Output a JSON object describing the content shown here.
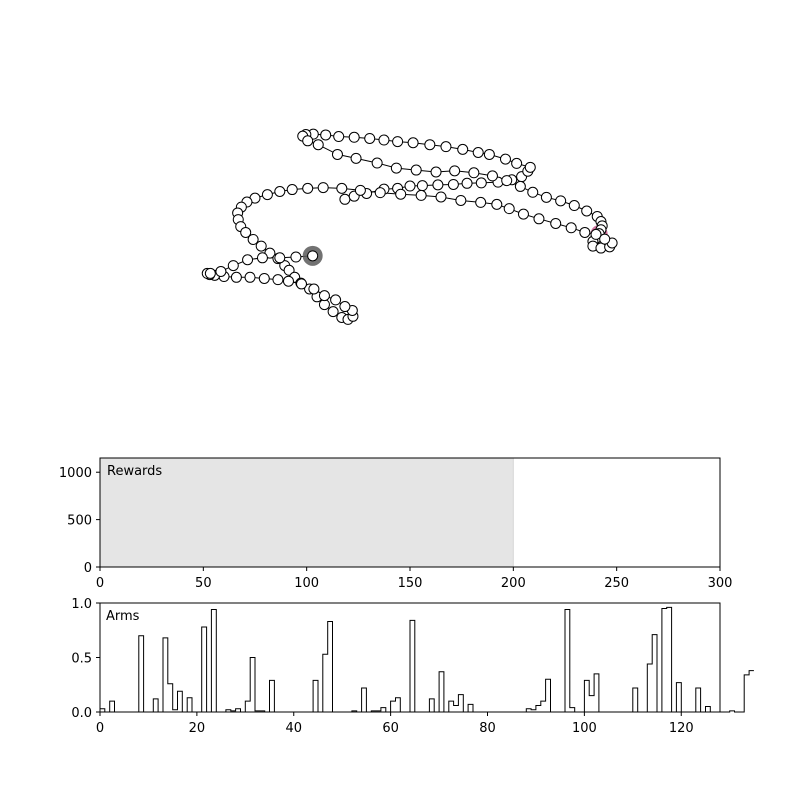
{
  "colors": {
    "node_fill": "#ffffff",
    "node_stroke": "#000000",
    "path_line": "#000000",
    "start_marker": "#c2457f",
    "end_marker": "#595959",
    "shade": "#e5e5e5",
    "step_line": "#000000"
  },
  "chart_data": [
    {
      "type": "line",
      "description_role": "trajectory",
      "marker": "circle",
      "highlight": {
        "start_index": 55,
        "end_index": 128
      },
      "series": [
        {
          "x": [
            0.395,
            0.41,
            0.43,
            0.458,
            0.48,
            0.5,
            0.52,
            0.545,
            0.57,
            0.592,
            0.615,
            0.642,
            0.664,
            0.68,
            0.69,
            0.694,
            0.672,
            0.654,
            0.628,
            0.61,
            0.585,
            0.558,
            0.532,
            0.505,
            0.48,
            0.458,
            0.435,
            0.41,
            0.385,
            0.364,
            0.344,
            0.332,
            0.327,
            0.335,
            0.352,
            0.383,
            0.413,
            0.447,
            0.478,
            0.51,
            0.542,
            0.572,
            0.603,
            0.633,
            0.656,
            0.678,
            0.698,
            0.72,
            0.743,
            0.765,
            0.785,
            0.802,
            0.808,
            0.81,
            0.808,
            0.805,
            0.8,
            0.795,
            0.795,
            0.808,
            0.822,
            0.826,
            0.814,
            0.8,
            0.782,
            0.76,
            0.735,
            0.708,
            0.683,
            0.66,
            0.64,
            0.614,
            0.582,
            0.55,
            0.518,
            0.485,
            0.452,
            0.42,
            0.39,
            0.36,
            0.335,
            0.31,
            0.29,
            0.27,
            0.25,
            0.237,
            0.228,
            0.222,
            0.223,
            0.227,
            0.235,
            0.247,
            0.26,
            0.274,
            0.287,
            0.298,
            0.305,
            0.314,
            0.324,
            0.338,
            0.35,
            0.362,
            0.376,
            0.39,
            0.4,
            0.408,
            0.407,
            0.395,
            0.38,
            0.362,
            0.345,
            0.325,
            0.304,
            0.287,
            0.265,
            0.242,
            0.22,
            0.2,
            0.185,
            0.177,
            0.173,
            0.178,
            0.195,
            0.215,
            0.238,
            0.262,
            0.29,
            0.316,
            0.343
          ],
          "y": [
            0.63,
            0.638,
            0.645,
            0.656,
            0.658,
            0.664,
            0.665,
            0.667,
            0.668,
            0.671,
            0.672,
            0.674,
            0.68,
            0.688,
            0.702,
            0.712,
            0.722,
            0.733,
            0.745,
            0.75,
            0.758,
            0.765,
            0.77,
            0.775,
            0.778,
            0.782,
            0.786,
            0.789,
            0.791,
            0.795,
            0.797,
            0.796,
            0.792,
            0.78,
            0.77,
            0.745,
            0.735,
            0.723,
            0.71,
            0.705,
            0.7,
            0.703,
            0.698,
            0.69,
            0.678,
            0.663,
            0.648,
            0.635,
            0.626,
            0.614,
            0.6,
            0.586,
            0.573,
            0.562,
            0.552,
            0.542,
            0.53,
            0.522,
            0.51,
            0.505,
            0.508,
            0.518,
            0.528,
            0.54,
            0.545,
            0.557,
            0.568,
            0.58,
            0.592,
            0.606,
            0.617,
            0.622,
            0.627,
            0.636,
            0.64,
            0.643,
            0.647,
            0.653,
            0.658,
            0.66,
            0.658,
            0.655,
            0.65,
            0.642,
            0.633,
            0.623,
            0.61,
            0.595,
            0.578,
            0.56,
            0.545,
            0.527,
            0.51,
            0.492,
            0.478,
            0.46,
            0.448,
            0.43,
            0.415,
            0.4,
            0.38,
            0.36,
            0.342,
            0.327,
            0.322,
            0.33,
            0.345,
            0.355,
            0.372,
            0.383,
            0.4,
            0.413,
            0.42,
            0.424,
            0.427,
            0.43,
            0.43,
            0.432,
            0.435,
            0.437,
            0.44,
            0.44,
            0.445,
            0.46,
            0.475,
            0.48,
            0.48,
            0.482,
            0.485
          ]
        }
      ],
      "xlim": [
        0,
        1
      ],
      "ylim": [
        0,
        1
      ]
    },
    {
      "type": "area",
      "label": "Rewards",
      "xlim": [
        0,
        300
      ],
      "ylim": [
        0,
        1150
      ],
      "xticks": [
        0,
        50,
        100,
        150,
        200,
        250,
        300
      ],
      "yticks": [
        0,
        500,
        1000
      ],
      "shaded_region": {
        "x_start": 0,
        "x_end": 200,
        "y_top": 1150
      }
    },
    {
      "type": "bar",
      "label": "Arms",
      "style": "step",
      "xlim": [
        0,
        128
      ],
      "ylim": [
        0,
        1.0
      ],
      "xticks": [
        0,
        20,
        40,
        60,
        80,
        100,
        120
      ],
      "yticks": [
        0.0,
        0.5,
        1.0
      ],
      "ytick_labels": [
        "0.0",
        "0.5",
        "1.0"
      ],
      "values": [
        0.03,
        0.0,
        0.1,
        0.0,
        0.0,
        0.0,
        0.0,
        0.0,
        0.7,
        0.0,
        0.0,
        0.12,
        0.0,
        0.68,
        0.26,
        0.02,
        0.19,
        0.0,
        0.13,
        0.0,
        0.0,
        0.78,
        0.0,
        0.94,
        0.0,
        0.0,
        0.02,
        0.01,
        0.03,
        0.0,
        0.1,
        0.5,
        0.01,
        0.01,
        0.0,
        0.29,
        0.0,
        0.0,
        0.0,
        0.0,
        0.0,
        0.0,
        0.0,
        0.0,
        0.29,
        0.0,
        0.53,
        0.83,
        0.0,
        0.0,
        0.0,
        0.0,
        0.01,
        0.0,
        0.22,
        0.0,
        0.01,
        0.01,
        0.04,
        0.0,
        0.1,
        0.13,
        0.0,
        0.0,
        0.84,
        0.0,
        0.0,
        0.0,
        0.12,
        0.0,
        0.37,
        0.0,
        0.1,
        0.06,
        0.16,
        0.0,
        0.07,
        0.0,
        0.0,
        0.0,
        0.0,
        0.0,
        0.0,
        0.0,
        0.0,
        0.0,
        0.0,
        0.0,
        0.03,
        0.02,
        0.06,
        0.1,
        0.3,
        0.0,
        0.0,
        0.0,
        0.94,
        0.04,
        0.0,
        0.0,
        0.29,
        0.15,
        0.35,
        0.0,
        0.0,
        0.0,
        0.0,
        0.0,
        0.0,
        0.0,
        0.22,
        0.0,
        0.0,
        0.44,
        0.71,
        0.0,
        0.95,
        0.96,
        0.0,
        0.27,
        0.0,
        0.0,
        0.0,
        0.22,
        0.0,
        0.05,
        0.0,
        0.0,
        0.0,
        0.0,
        0.01,
        0.0,
        0.0,
        0.34,
        0.38
      ]
    }
  ]
}
